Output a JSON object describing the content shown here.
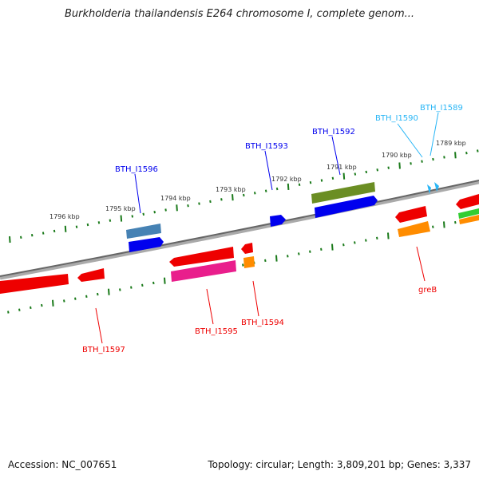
{
  "title": "Burkholderia thailandensis E264 chromosome I, complete genom...",
  "footer": {
    "accession": "Accession: NC_007651",
    "topology": "Topology: circular; Length: 3,809,201 bp; Genes: 3,337"
  },
  "scale_labels": [
    "1796 kbp",
    "1795 kbp",
    "1794 kbp",
    "1793 kbp",
    "1792 kbp",
    "1791 kbp",
    "1790 kbp",
    "1789 kbp"
  ],
  "gene_labels": {
    "i1596": "BTH_I1596",
    "i1593": "BTH_I1593",
    "i1592": "BTH_I1592",
    "i1590": "BTH_I1590",
    "i1589": "BTH_I1589",
    "greB": "greB",
    "i1594": "BTH_I1594",
    "i1595": "BTH_I1595",
    "i1597": "BTH_I1597"
  },
  "colors": {
    "forward_label": "#0000ee",
    "reverse_label": "#ee0000",
    "tick": "#1a7a1a",
    "backbone": "#808080"
  }
}
